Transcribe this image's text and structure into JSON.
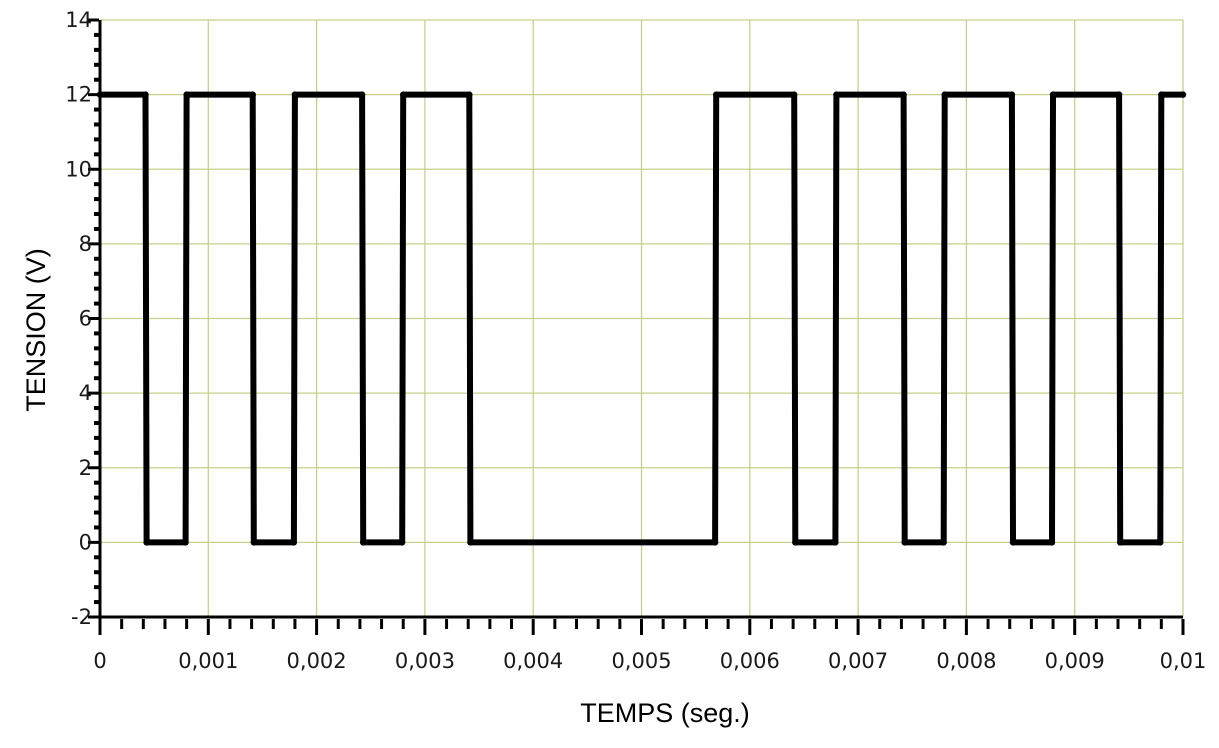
{
  "chart_data": {
    "type": "line",
    "title": "",
    "xlabel": "TEMPS (seg.)",
    "ylabel": "TENSION (V)",
    "xlim": [
      0,
      0.01
    ],
    "ylim": [
      -2,
      14
    ],
    "x_ticks": [
      0,
      0.001,
      0.002,
      0.003,
      0.004,
      0.005,
      0.006,
      0.007,
      0.008,
      0.009,
      0.01
    ],
    "x_tick_labels": [
      "0",
      "0,001",
      "0,002",
      "0,003",
      "0,004",
      "0,005",
      "0,006",
      "0,007",
      "0,008",
      "0,009",
      "0,01"
    ],
    "y_ticks": [
      -2,
      0,
      2,
      4,
      6,
      8,
      10,
      12,
      14
    ],
    "y_tick_labels": [
      "-2",
      "0",
      "2",
      "4",
      "6",
      "8",
      "10",
      "12",
      "14"
    ],
    "grid": true,
    "series": [
      {
        "x": [
          0,
          0.00042,
          0.00043,
          0.00079,
          0.0008,
          0.00141,
          0.00142,
          0.00179,
          0.0018,
          0.00242,
          0.00243,
          0.00279,
          0.0028,
          0.00341,
          0.00342,
          0.00568,
          0.00569,
          0.00641,
          0.00642,
          0.00679,
          0.0068,
          0.00742,
          0.00743,
          0.00779,
          0.0078,
          0.00842,
          0.00843,
          0.00879,
          0.0088,
          0.00941,
          0.00942,
          0.00979,
          0.0098,
          0.01
        ],
        "y": [
          12,
          12,
          0,
          0,
          12,
          12,
          0,
          0,
          12,
          12,
          0,
          0,
          12,
          12,
          0,
          0,
          12,
          12,
          0,
          0,
          12,
          12,
          0,
          0,
          12,
          12,
          0,
          0,
          12,
          12,
          0,
          0,
          12,
          12
        ]
      }
    ]
  }
}
